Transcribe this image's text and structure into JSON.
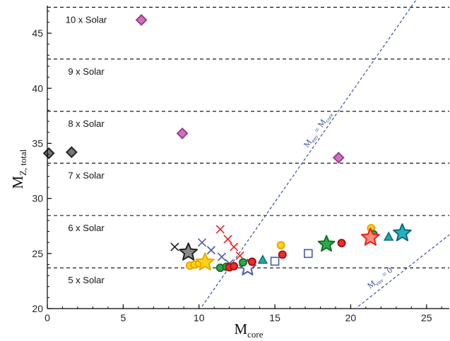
{
  "chart_data": {
    "type": "scatter",
    "title": "",
    "xlabel": {
      "main": "M",
      "sub": "core"
    },
    "ylabel": {
      "main": "M",
      "sub": "Z, total"
    },
    "xlim": [
      0,
      26.5
    ],
    "ylim": [
      20,
      47.5
    ],
    "xticks": [
      0,
      5,
      10,
      15,
      20,
      25
    ],
    "yticks": [
      20,
      25,
      30,
      35,
      40,
      45
    ],
    "hlines": [
      {
        "y": 23.7,
        "label": "5 x Solar"
      },
      {
        "y": 28.45,
        "label": "6 x Solar"
      },
      {
        "y": 33.2,
        "label": "7 x Solar"
      },
      {
        "y": 37.9,
        "label": "8 x Solar"
      },
      {
        "y": 42.65,
        "label": "9 x Solar"
      },
      {
        "y": 47.35,
        "label": "10 x Solar"
      }
    ],
    "diagonals": [
      {
        "label": "M",
        "sub": "env",
        "label_rest": " = M",
        "sub2": "core",
        "from": [
          10.2,
          20.2
        ],
        "to": [
          24.3,
          48.0
        ]
      },
      {
        "label": "M",
        "sub": "env",
        "label_rest": " = 0",
        "sub2": "",
        "from": [
          20.5,
          20.2
        ],
        "to": [
          26.5,
          26.7
        ]
      }
    ],
    "markers": [
      {
        "shape": "diamond",
        "fill": "#d070c0",
        "stroke": "#9a3c8f",
        "x": 6.2,
        "y": 46.2
      },
      {
        "shape": "diamond",
        "fill": "#d070c0",
        "stroke": "#9a3c8f",
        "x": 8.9,
        "y": 35.9
      },
      {
        "shape": "diamond",
        "fill": "#d070c0",
        "stroke": "#9a3c8f",
        "x": 19.2,
        "y": 33.7
      },
      {
        "shape": "diamond",
        "fill": "#777777",
        "stroke": "#222222",
        "x": 0.1,
        "y": 34.1
      },
      {
        "shape": "diamond",
        "fill": "#777777",
        "stroke": "#222222",
        "x": 1.6,
        "y": 34.2
      },
      {
        "shape": "x",
        "fill": "none",
        "stroke": "#222222",
        "x": 8.4,
        "y": 25.6
      },
      {
        "shape": "x",
        "fill": "none",
        "stroke": "#4a5ba8",
        "x": 10.2,
        "y": 26.0
      },
      {
        "shape": "x",
        "fill": "none",
        "stroke": "#4a5ba8",
        "x": 10.8,
        "y": 25.3
      },
      {
        "shape": "x",
        "fill": "none",
        "stroke": "#4a5ba8",
        "x": 11.5,
        "y": 24.7
      },
      {
        "shape": "x",
        "fill": "none",
        "stroke": "#4a5ba8",
        "x": 12.0,
        "y": 24.1
      },
      {
        "shape": "x",
        "fill": "none",
        "stroke": "#ee1c1c",
        "x": 11.4,
        "y": 27.2
      },
      {
        "shape": "x",
        "fill": "none",
        "stroke": "#ee1c1c",
        "x": 11.9,
        "y": 26.3
      },
      {
        "shape": "x",
        "fill": "none",
        "stroke": "#ee1c1c",
        "x": 12.3,
        "y": 25.6
      },
      {
        "shape": "x",
        "fill": "none",
        "stroke": "#ee1c1c",
        "x": 12.7,
        "y": 24.8
      },
      {
        "shape": "star",
        "fill": "#8a8a8a",
        "stroke": "#222222",
        "x": 9.3,
        "y": 25.1,
        "size": 13
      },
      {
        "shape": "circle",
        "fill": "#ffd21a",
        "stroke": "#e8a800",
        "x": 9.4,
        "y": 23.9
      },
      {
        "shape": "circle",
        "fill": "#ffd21a",
        "stroke": "#e8a800",
        "x": 9.7,
        "y": 24.0
      },
      {
        "shape": "circle",
        "fill": "#ffd21a",
        "stroke": "#e8a800",
        "x": 10.0,
        "y": 24.1
      },
      {
        "shape": "star",
        "fill": "#ffd21a",
        "stroke": "#e8a800",
        "x": 10.4,
        "y": 24.2,
        "size": 13
      },
      {
        "shape": "circle",
        "fill": "#2ea84a",
        "stroke": "#16702a",
        "x": 11.4,
        "y": 23.7
      },
      {
        "shape": "circle",
        "fill": "#2ea84a",
        "stroke": "#16702a",
        "x": 11.8,
        "y": 23.8
      },
      {
        "shape": "circle",
        "fill": "#ee2b2b",
        "stroke": "#a80f0f",
        "x": 12.0,
        "y": 23.75
      },
      {
        "shape": "circle",
        "fill": "#ee2b2b",
        "stroke": "#a80f0f",
        "x": 12.3,
        "y": 23.85
      },
      {
        "shape": "star",
        "fill": "#ffffff",
        "stroke": "#4a5ba8",
        "x": 13.2,
        "y": 23.7,
        "size": 12
      },
      {
        "shape": "circle",
        "fill": "#2ea84a",
        "stroke": "#16702a",
        "x": 12.9,
        "y": 24.2
      },
      {
        "shape": "circle",
        "fill": "#ee2b2b",
        "stroke": "#a80f0f",
        "x": 13.5,
        "y": 24.25
      },
      {
        "shape": "triangle",
        "fill": "#1fa8a8",
        "stroke": "#0a6a6a",
        "x": 14.2,
        "y": 24.4
      },
      {
        "shape": "square",
        "fill": "#ffffff",
        "stroke": "#4a5ba8",
        "x": 15.0,
        "y": 24.3
      },
      {
        "shape": "circle",
        "fill": "#ffd21a",
        "stroke": "#e8a800",
        "x": 15.4,
        "y": 25.75
      },
      {
        "shape": "circle",
        "fill": "#ee2b2b",
        "stroke": "#a80f0f",
        "x": 15.5,
        "y": 24.9
      },
      {
        "shape": "square",
        "fill": "#ffffff",
        "stroke": "#4a5ba8",
        "x": 17.2,
        "y": 25.0
      },
      {
        "shape": "star",
        "fill": "#2ea84a",
        "stroke": "#16702a",
        "x": 18.4,
        "y": 25.85,
        "size": 12
      },
      {
        "shape": "circle",
        "fill": "#ee2b2b",
        "stroke": "#a80f0f",
        "x": 19.4,
        "y": 25.95
      },
      {
        "shape": "circle",
        "fill": "#ffd21a",
        "stroke": "#e8a800",
        "x": 21.35,
        "y": 27.3
      },
      {
        "shape": "circle",
        "fill": "#2ea84a",
        "stroke": "#16702a",
        "x": 21.5,
        "y": 26.75
      },
      {
        "shape": "star",
        "fill": "#ff8c7a",
        "stroke": "#ee1c1c",
        "x": 21.3,
        "y": 26.45,
        "size": 13
      },
      {
        "shape": "triangle",
        "fill": "#1fa8a8",
        "stroke": "#0a6a6a",
        "x": 22.5,
        "y": 26.5
      },
      {
        "shape": "star",
        "fill": "#1fb4c0",
        "stroke": "#0a6a7a",
        "x": 23.4,
        "y": 26.85,
        "size": 13
      }
    ]
  }
}
